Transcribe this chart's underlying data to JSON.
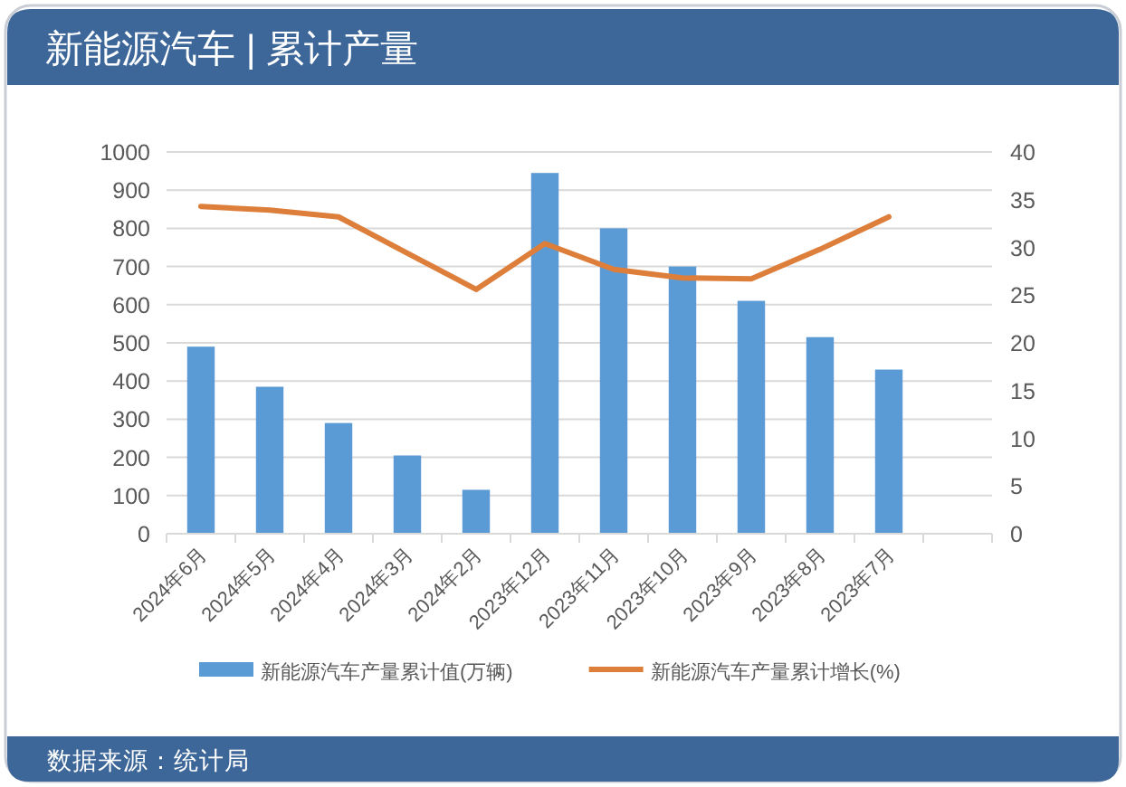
{
  "chart_data": {
    "type": "bar",
    "title": "新能源汽车 | 累计产量",
    "annotations": [
      "数据来源：统计局"
    ],
    "categories": [
      "2024年6月",
      "2024年5月",
      "2024年4月",
      "2024年3月",
      "2024年2月",
      "2023年12月",
      "2023年11月",
      "2023年10月",
      "2023年9月",
      "2023年8月",
      "2023年7月",
      null
    ],
    "series": [
      {
        "name": "新能源汽车产量累计值(万辆)",
        "color": "#5b9bd5",
        "values": [
          490,
          385,
          290,
          205,
          115,
          945,
          800,
          700,
          610,
          515,
          430,
          null
        ]
      },
      {
        "name": "新能源汽车产量累计增长(%)",
        "type": "line",
        "axis": "y2",
        "color": "#dd7e3b",
        "values": [
          34.3,
          33.9,
          33.2,
          29.4,
          25.6,
          30.4,
          27.7,
          26.8,
          26.7,
          29.8,
          33.2,
          null
        ]
      }
    ],
    "ylim": [
      0,
      1000
    ],
    "yticks": [
      0,
      100,
      200,
      300,
      400,
      500,
      600,
      700,
      800,
      900,
      1000
    ],
    "y2lim": [
      0,
      40
    ],
    "y2ticks": [
      0,
      5,
      10,
      15,
      20,
      25,
      30,
      35,
      40
    ],
    "grid": "y",
    "legend": "bottom"
  }
}
